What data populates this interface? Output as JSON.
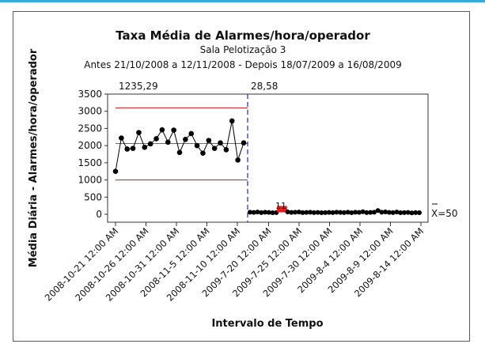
{
  "chart_data": {
    "type": "line",
    "title": "Taxa Média de Alarmes/hora/operador",
    "subtitle": "Sala Pelotização 3",
    "subtitle2": "Antes 21/10/2008 a 12/11/2008 - Depois 18/07/2009 a 16/08/2009",
    "xlabel": "Intervalo de Tempo",
    "ylabel": "Média Diária - Alarmes/hora/operador",
    "ylim": [
      0,
      3500
    ],
    "yticks": [
      "0",
      "500",
      "1000",
      "1500",
      "2000",
      "2500",
      "3000",
      "3500"
    ],
    "xticks": [
      "2008-10-21 12:00 AM",
      "2008-10-26 12:00 AM",
      "2008-10-31 12:00 AM",
      "2008-11-5 12:00 AM",
      "2008-11-10 12:00 AM",
      "2009-7-20 12:00 AM",
      "2009-7-25 12:00 AM",
      "2009-7-30 12:00 AM",
      "2009-8-4 12:00 AM",
      "2009-8-9 12:00 AM",
      "2009-8-14 12:00 AM"
    ],
    "phase_labels": [
      "1235,29",
      "28,58"
    ],
    "mean_label": "X=50",
    "flag_label": "11",
    "before": {
      "values": [
        1250,
        2220,
        1900,
        1920,
        2380,
        1950,
        2050,
        2200,
        2460,
        2100,
        2450,
        1800,
        2180,
        2350,
        2000,
        1780,
        2150,
        1920,
        2080,
        1880,
        2720,
        1580,
        2080
      ],
      "center": 2060,
      "ucl": 3100,
      "lcl": 1000
    },
    "after": {
      "values": [
        60,
        55,
        65,
        50,
        60,
        55,
        45,
        50,
        150,
        150,
        70,
        55,
        60,
        65,
        50,
        55,
        60,
        50,
        55,
        45,
        50,
        55,
        50,
        60,
        55,
        50,
        60,
        45,
        60,
        55,
        75,
        50,
        55,
        60,
        110,
        60,
        70,
        55,
        50,
        65,
        45,
        50,
        55,
        40,
        50,
        45
      ],
      "flagged_indices": [
        8,
        9
      ]
    },
    "colors": {
      "line": "#000000",
      "marker": "#000000",
      "flag": "#e02020",
      "center": "#1ea01e",
      "limit": "#c81414",
      "divider": "#1c2b9c"
    },
    "grid": false
  }
}
